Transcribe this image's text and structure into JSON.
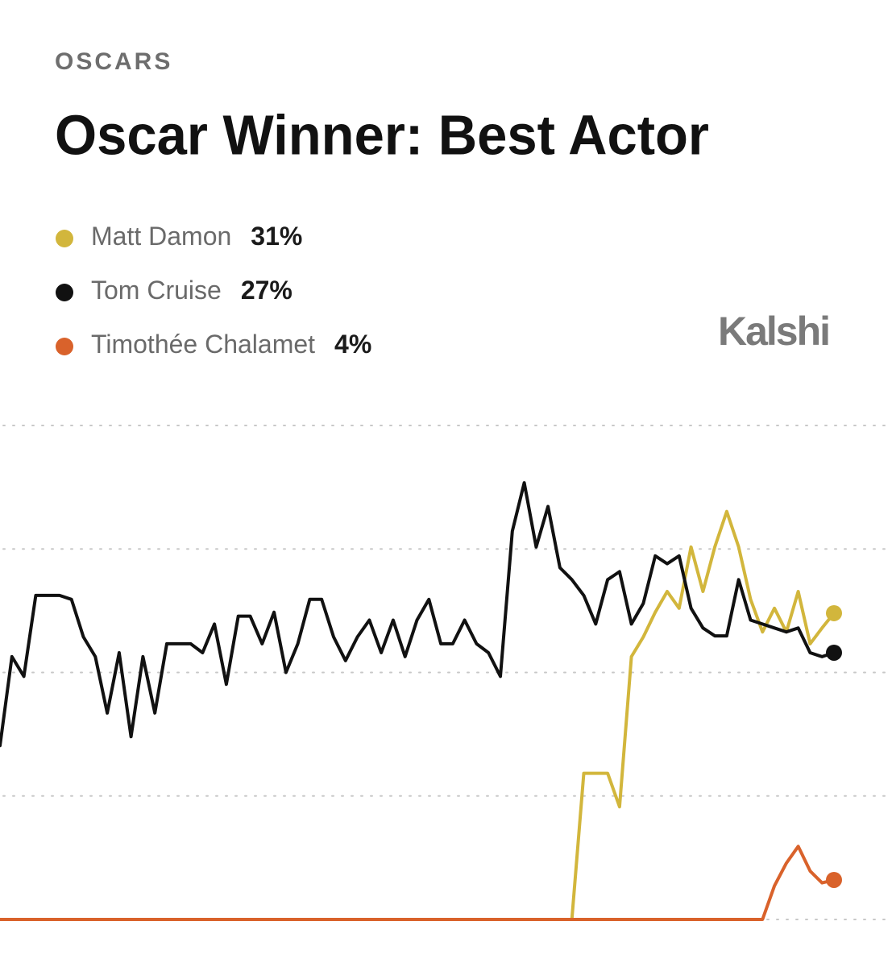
{
  "chart_data": {
    "type": "line",
    "kicker": "OSCARS",
    "title": "Oscar Winner: Best Actor",
    "brand": "Kalshi",
    "ylim": [
      0,
      50
    ],
    "yticks": [
      0,
      12.5,
      25,
      37.5,
      50
    ],
    "grid": true,
    "series": [
      {
        "name": "Matt Damon",
        "color": "#d2b63c",
        "values": [
          0,
          0,
          0,
          0,
          0,
          0,
          0,
          0,
          0,
          0,
          0,
          0,
          0,
          0,
          0,
          0,
          0,
          0,
          0,
          0,
          0,
          0,
          0,
          0,
          0,
          0,
          0,
          0,
          0,
          0,
          0,
          0,
          0,
          0,
          0,
          0,
          0,
          0,
          0,
          0,
          0,
          0,
          0,
          0,
          0,
          0,
          0,
          0,
          0,
          14.8,
          14.8,
          14.8,
          11.4,
          26.6,
          28.6,
          31.1,
          33.2,
          31.5,
          37.7,
          33.2,
          37.7,
          41.3,
          37.7,
          32.4,
          29.1,
          31.5,
          29.1,
          33.2,
          27.9,
          29.5,
          31
        ],
        "value_labels": [
          null,
          null,
          null,
          null,
          null,
          null,
          null,
          null,
          null,
          null,
          null,
          null,
          null,
          null,
          null,
          null,
          null,
          null,
          null,
          null,
          null,
          null,
          null,
          null,
          null,
          null,
          null,
          null,
          null,
          null,
          null,
          null,
          null,
          null,
          null,
          null,
          null,
          null,
          null,
          null,
          null,
          null,
          null,
          null,
          null,
          null,
          null,
          null,
          null,
          null,
          null,
          null,
          null,
          null,
          null,
          null,
          null,
          null,
          null,
          null,
          null,
          null,
          null,
          null,
          null,
          null,
          null,
          null,
          null,
          null,
          "31%"
        ]
      },
      {
        "name": "Tom Cruise",
        "color": "#111111",
        "values": [
          17.6,
          26.6,
          24.6,
          32.8,
          32.8,
          32.8,
          32.4,
          28.6,
          26.6,
          20.9,
          27.0,
          18.5,
          26.6,
          20.9,
          27.9,
          27.9,
          27.9,
          27.0,
          29.9,
          23.8,
          30.7,
          30.7,
          27.9,
          31.1,
          25.0,
          27.9,
          32.4,
          32.4,
          28.6,
          26.2,
          28.6,
          30.3,
          27.0,
          30.3,
          26.6,
          30.3,
          32.4,
          27.9,
          27.9,
          30.3,
          27.9,
          27.0,
          24.6,
          39.3,
          44.2,
          37.7,
          41.8,
          35.6,
          34.4,
          32.8,
          29.9,
          34.4,
          35.2,
          29.9,
          32.0,
          36.8,
          36.0,
          36.8,
          31.5,
          29.5,
          28.7,
          28.7,
          34.4,
          30.3,
          29.9,
          29.5,
          29.1,
          29.5,
          27.0,
          26.6,
          27
        ],
        "value_labels": [
          null,
          null,
          null,
          null,
          null,
          null,
          null,
          null,
          null,
          null,
          null,
          null,
          null,
          null,
          null,
          null,
          null,
          null,
          null,
          null,
          null,
          null,
          null,
          null,
          null,
          null,
          null,
          null,
          null,
          null,
          null,
          null,
          null,
          null,
          null,
          null,
          null,
          null,
          null,
          null,
          null,
          null,
          null,
          null,
          null,
          null,
          null,
          null,
          null,
          null,
          null,
          null,
          null,
          null,
          null,
          null,
          null,
          null,
          null,
          null,
          null,
          null,
          null,
          null,
          null,
          null,
          null,
          null,
          null,
          null,
          "27%"
        ]
      },
      {
        "name": "Timothée Chalamet",
        "color": "#d9622b",
        "values": [
          0,
          0,
          0,
          0,
          0,
          0,
          0,
          0,
          0,
          0,
          0,
          0,
          0,
          0,
          0,
          0,
          0,
          0,
          0,
          0,
          0,
          0,
          0,
          0,
          0,
          0,
          0,
          0,
          0,
          0,
          0,
          0,
          0,
          0,
          0,
          0,
          0,
          0,
          0,
          0,
          0,
          0,
          0,
          0,
          0,
          0,
          0,
          0,
          0,
          0,
          0,
          0,
          0,
          0,
          0,
          0,
          0,
          0,
          0,
          0,
          0,
          0,
          0,
          0,
          0,
          3.4,
          5.7,
          7.4,
          4.9,
          3.7,
          4
        ],
        "value_labels": [
          null,
          null,
          null,
          null,
          null,
          null,
          null,
          null,
          null,
          null,
          null,
          null,
          null,
          null,
          null,
          null,
          null,
          null,
          null,
          null,
          null,
          null,
          null,
          null,
          null,
          null,
          null,
          null,
          null,
          null,
          null,
          null,
          null,
          null,
          null,
          null,
          null,
          null,
          null,
          null,
          null,
          null,
          null,
          null,
          null,
          null,
          null,
          null,
          null,
          null,
          null,
          null,
          null,
          null,
          null,
          null,
          null,
          null,
          null,
          null,
          null,
          null,
          null,
          null,
          null,
          null,
          null,
          null,
          null,
          null,
          "4%"
        ]
      }
    ]
  }
}
